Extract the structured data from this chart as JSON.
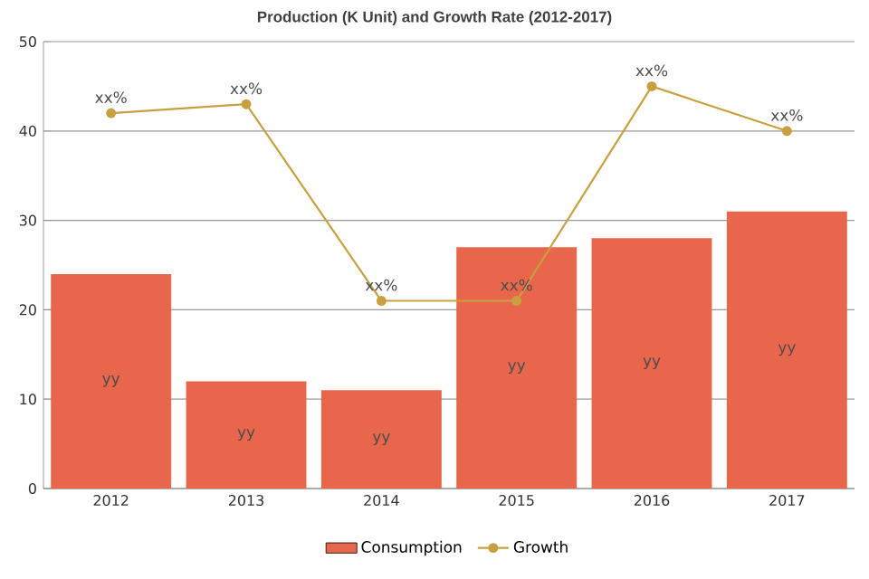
{
  "chart_data": {
    "type": "bar",
    "title": "Production (K Unit) and Growth Rate (2012-2017)",
    "categories": [
      "2012",
      "2013",
      "2014",
      "2015",
      "2016",
      "2017"
    ],
    "series": [
      {
        "name": "Consumption",
        "color": "#e8664c",
        "values": [
          24,
          12,
          11,
          27,
          28,
          31
        ],
        "value_labels": [
          "yy",
          "yy",
          "yy",
          "yy",
          "yy",
          "yy"
        ]
      },
      {
        "name": "Growth",
        "type": "line",
        "color": "#c9a040",
        "values": [
          42,
          43,
          21,
          21,
          45,
          40
        ],
        "value_labels": [
          "xx%",
          "xx%",
          "xx%",
          "xx%",
          "xx%",
          "xx%"
        ]
      }
    ],
    "ylim": [
      0,
      50
    ],
    "yticks": [
      0,
      10,
      20,
      30,
      40,
      50
    ],
    "grid": "y",
    "legend": "bottom",
    "marker": "circle"
  }
}
